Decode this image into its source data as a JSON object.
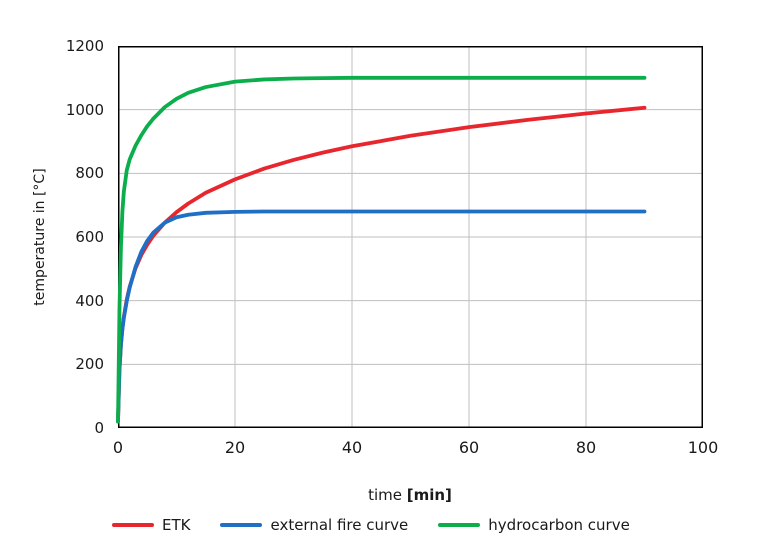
{
  "chart_data": {
    "type": "line",
    "title": "",
    "xlabel": "time [min]",
    "ylabel": "temperature in [°C]",
    "xlim": [
      0,
      100
    ],
    "ylim": [
      0,
      1200
    ],
    "xticks": [
      0,
      20,
      40,
      60,
      80,
      100
    ],
    "yticks": [
      0,
      200,
      400,
      600,
      800,
      1000,
      1200
    ],
    "grid": true,
    "legend_position": "bottom",
    "series": [
      {
        "name": "ETK",
        "color": "#e8262d",
        "x": [
          0,
          0.25,
          0.5,
          0.75,
          1,
          1.5,
          2,
          3,
          4,
          5,
          6,
          8,
          10,
          12,
          15,
          20,
          25,
          30,
          35,
          40,
          50,
          60,
          70,
          80,
          90
        ],
        "y": [
          20,
          185,
          261,
          312,
          349,
          404,
          444,
          502,
          544,
          576,
          603,
          645,
          678,
          705,
          739,
          781,
          815,
          842,
          865,
          885,
          918,
          945,
          968,
          988,
          1006
        ]
      },
      {
        "name": "external fire curve",
        "color": "#1f6fc5",
        "x": [
          0,
          0.25,
          0.5,
          0.75,
          1,
          1.5,
          2,
          3,
          4,
          5,
          6,
          8,
          10,
          12,
          15,
          20,
          25,
          30,
          35,
          40,
          50,
          60,
          70,
          80,
          90
        ],
        "y": [
          20,
          182,
          263,
          311,
          346,
          399,
          441,
          506,
          554,
          588,
          613,
          645,
          662,
          670,
          676,
          679,
          680,
          680,
          680,
          680,
          680,
          680,
          680,
          680,
          680
        ]
      },
      {
        "name": "hydrocarbon curve",
        "color": "#0cae4c",
        "x": [
          0,
          0.25,
          0.5,
          0.75,
          1,
          1.5,
          2,
          3,
          4,
          5,
          6,
          8,
          10,
          12,
          15,
          20,
          25,
          30,
          35,
          40,
          50,
          60,
          70,
          80,
          90
        ],
        "y": [
          20,
          373,
          568,
          679,
          743,
          810,
          844,
          887,
          920,
          948,
          971,
          1008,
          1034,
          1053,
          1071,
          1088,
          1095,
          1098,
          1099,
          1100,
          1100,
          1100,
          1100,
          1100,
          1100
        ]
      }
    ]
  },
  "axis": {
    "x_label_normal": "time",
    "x_label_bold": "[min]",
    "y_label": "temperature in [°C]"
  },
  "legend": {
    "items": [
      {
        "label": "ETK",
        "color": "#e8262d"
      },
      {
        "label": "external fire curve",
        "color": "#1f6fc5"
      },
      {
        "label": "hydrocarbon curve",
        "color": "#0cae4c"
      }
    ]
  },
  "colors": {
    "background": "#ffffff",
    "grid": "#bfbfbf",
    "axis_border": "#000000"
  }
}
